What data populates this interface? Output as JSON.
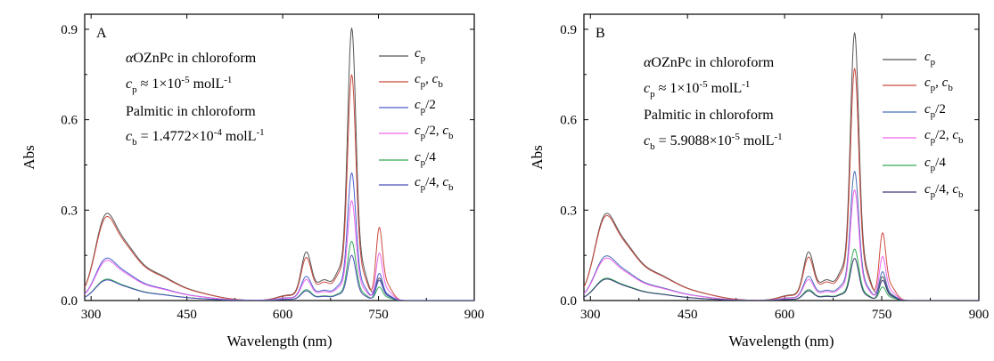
{
  "chart_data": [
    {
      "panel": "A",
      "type": "line",
      "xlabel": "Wavelength (nm)",
      "ylabel": "Abs",
      "xlim": [
        290,
        900
      ],
      "ylim": [
        0,
        0.95
      ],
      "xticks": [
        "300",
        "450",
        "600",
        "750",
        "900"
      ],
      "yticks": [
        "0.0",
        "0.3",
        "0.6",
        "0.9"
      ],
      "annotations": [
        "αOZnPc in chloroform",
        "cp ≈ 1×10-5 molL-1",
        "Palmitic in chloroform",
        "cb = 1.4772×10-4 molL-1"
      ],
      "legend_location": "upper-right",
      "series": [
        {
          "name": "cp",
          "color": "#555555",
          "peaks": [
            0.195,
            0.151,
            0.875,
            0.066
          ]
        },
        {
          "name": "cp, cb",
          "color": "#cc4b3f",
          "peaks": [
            0.188,
            0.134,
            0.725,
            0.216
          ]
        },
        {
          "name": "cp/2",
          "color": "#4a5fcf",
          "peaks": [
            0.095,
            0.075,
            0.41,
            0.08
          ]
        },
        {
          "name": "cp/2, cb",
          "color": "#ee66ee",
          "peaks": [
            0.09,
            0.065,
            0.32,
            0.14
          ]
        },
        {
          "name": "cp/4",
          "color": "#33aa55",
          "peaks": [
            0.048,
            0.034,
            0.19,
            0.04
          ]
        },
        {
          "name": "cp/4, cb",
          "color": "#4a4fb8",
          "peaks": [
            0.046,
            0.03,
            0.145,
            0.06
          ]
        }
      ]
    },
    {
      "panel": "B",
      "type": "line",
      "xlabel": "Wavelength (nm)",
      "ylabel": "Abs",
      "xlim": [
        290,
        900
      ],
      "ylim": [
        0,
        0.95
      ],
      "xticks": [
        "300",
        "450",
        "600",
        "750",
        "900"
      ],
      "yticks": [
        "0.0",
        "0.3",
        "0.6",
        "0.9"
      ],
      "annotations": [
        "αOZnPc in chloroform",
        "cp ≈ 1×10-5 molL-1",
        "Palmitic in chloroform",
        "cb = 5.9088×10-5 molL-1"
      ],
      "legend_location": "upper-right",
      "series": [
        {
          "name": "cp",
          "color": "#555555",
          "peaks": [
            0.195,
            0.151,
            0.86,
            0.07
          ]
        },
        {
          "name": "cp, cb",
          "color": "#cc4b3f",
          "peaks": [
            0.19,
            0.135,
            0.745,
            0.2
          ]
        },
        {
          "name": "cp/2",
          "color": "#4a6fb8",
          "peaks": [
            0.1,
            0.075,
            0.415,
            0.085
          ]
        },
        {
          "name": "cp/2, cb",
          "color": "#ee66ee",
          "peaks": [
            0.095,
            0.065,
            0.355,
            0.13
          ]
        },
        {
          "name": "cp/4",
          "color": "#33aa55",
          "peaks": [
            0.05,
            0.034,
            0.165,
            0.04
          ]
        },
        {
          "name": "cp/4, cb",
          "color": "#3a3a7a",
          "peaks": [
            0.048,
            0.03,
            0.135,
            0.06
          ]
        }
      ]
    }
  ]
}
